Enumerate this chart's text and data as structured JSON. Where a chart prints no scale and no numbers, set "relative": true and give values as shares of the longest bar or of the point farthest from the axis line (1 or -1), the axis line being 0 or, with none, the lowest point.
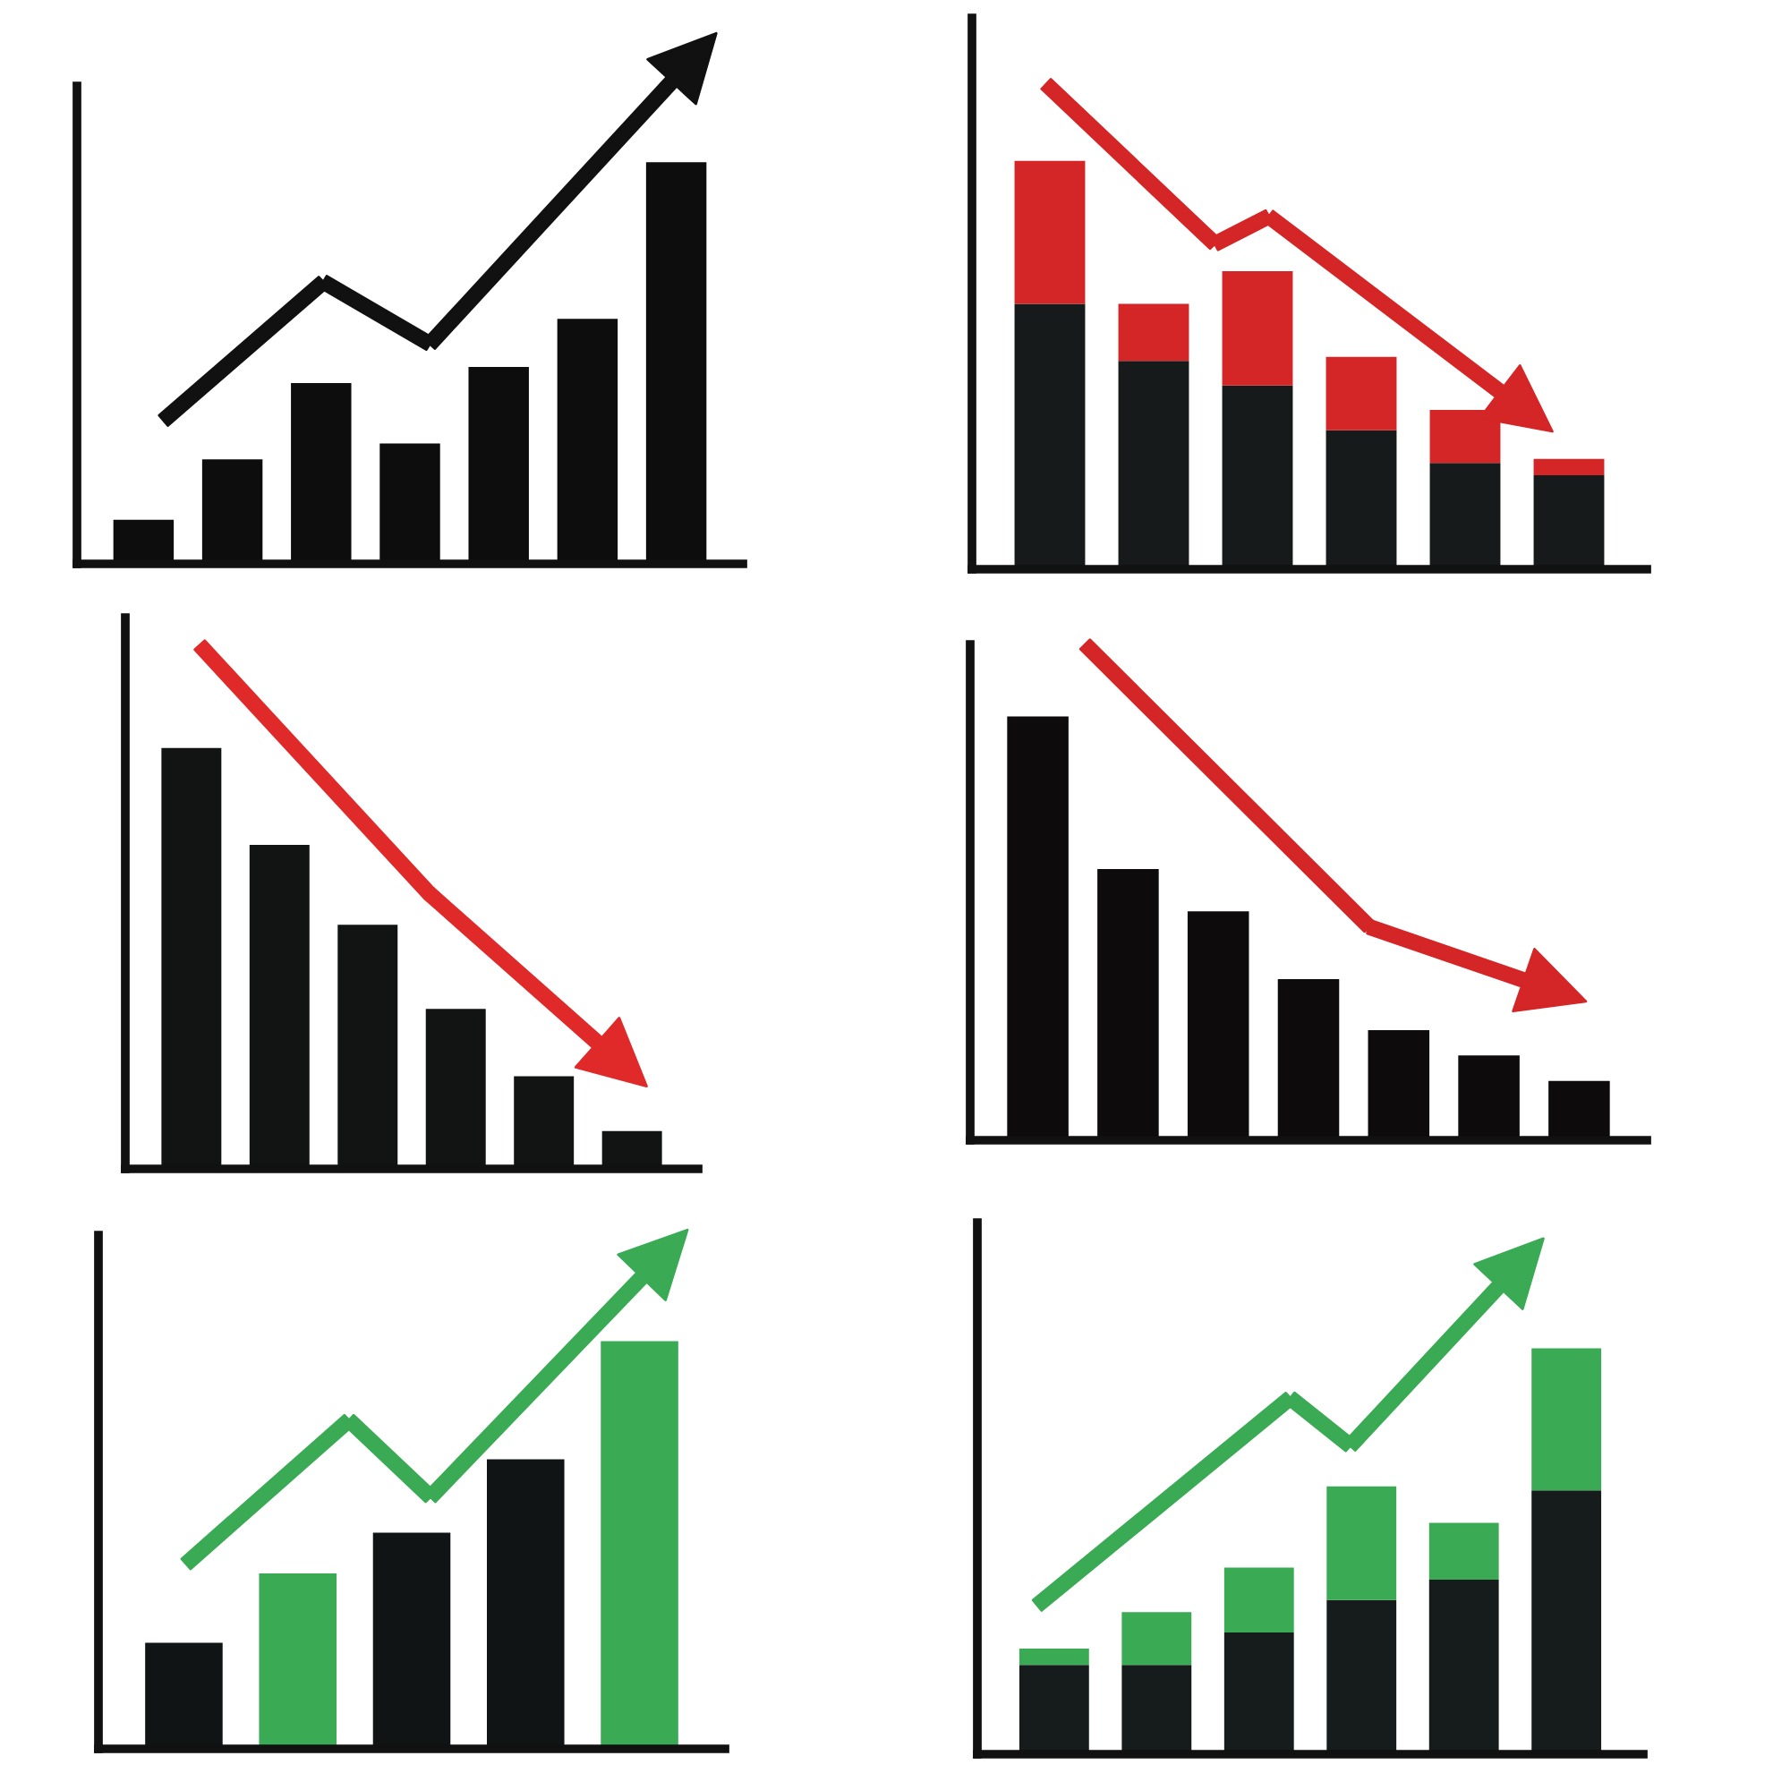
{
  "chart_data": [
    {
      "type": "bar",
      "relative": true,
      "categories": [
        null,
        null,
        null,
        null,
        null,
        null,
        null
      ],
      "series": [
        {
          "color": "#0d0d0d",
          "values": [
            0.11,
            0.26,
            0.45,
            0.3,
            0.49,
            0.61,
            1
          ]
        }
      ]
    },
    {
      "type": "bar",
      "relative": true,
      "stacked": true,
      "categories": [
        null,
        null,
        null,
        null,
        null,
        null
      ],
      "series": [
        {
          "color": "#161a1a",
          "values": [
            0.65,
            0.51,
            0.45,
            0.34,
            0.26,
            0.23
          ]
        },
        {
          "color": "#d42527",
          "values": [
            0.35,
            0.14,
            0.28,
            0.18,
            0.13,
            0.04
          ]
        }
      ]
    },
    {
      "type": "bar",
      "relative": true,
      "categories": [
        null,
        null,
        null,
        null,
        null,
        null
      ],
      "series": [
        {
          "color": "#121414",
          "values": [
            1,
            0.77,
            0.58,
            0.38,
            0.22,
            0.09
          ]
        }
      ]
    },
    {
      "type": "bar",
      "relative": true,
      "categories": [
        null,
        null,
        null,
        null,
        null,
        null,
        null
      ],
      "series": [
        {
          "color": "#0d0b0b",
          "values": [
            1,
            0.64,
            0.54,
            0.38,
            0.26,
            0.2,
            0.14
          ]
        }
      ]
    },
    {
      "type": "bar",
      "relative": true,
      "categories": [
        null,
        null,
        null,
        null,
        null
      ],
      "series": [
        {
          "colors": [
            "#101414",
            "#3aaa55",
            "#101414",
            "#101414",
            "#3aaa55"
          ],
          "values": [
            0.26,
            0.43,
            0.53,
            0.71,
            1
          ]
        }
      ]
    },
    {
      "type": "bar",
      "relative": true,
      "stacked": true,
      "categories": [
        null,
        null,
        null,
        null,
        null,
        null
      ],
      "series": [
        {
          "color": "#161c1c",
          "values": [
            0.22,
            0.22,
            0.3,
            0.38,
            0.43,
            0.65
          ]
        },
        {
          "color": "#3aaa55",
          "values": [
            0.04,
            0.13,
            0.16,
            0.28,
            0.14,
            0.35
          ]
        }
      ]
    }
  ]
}
